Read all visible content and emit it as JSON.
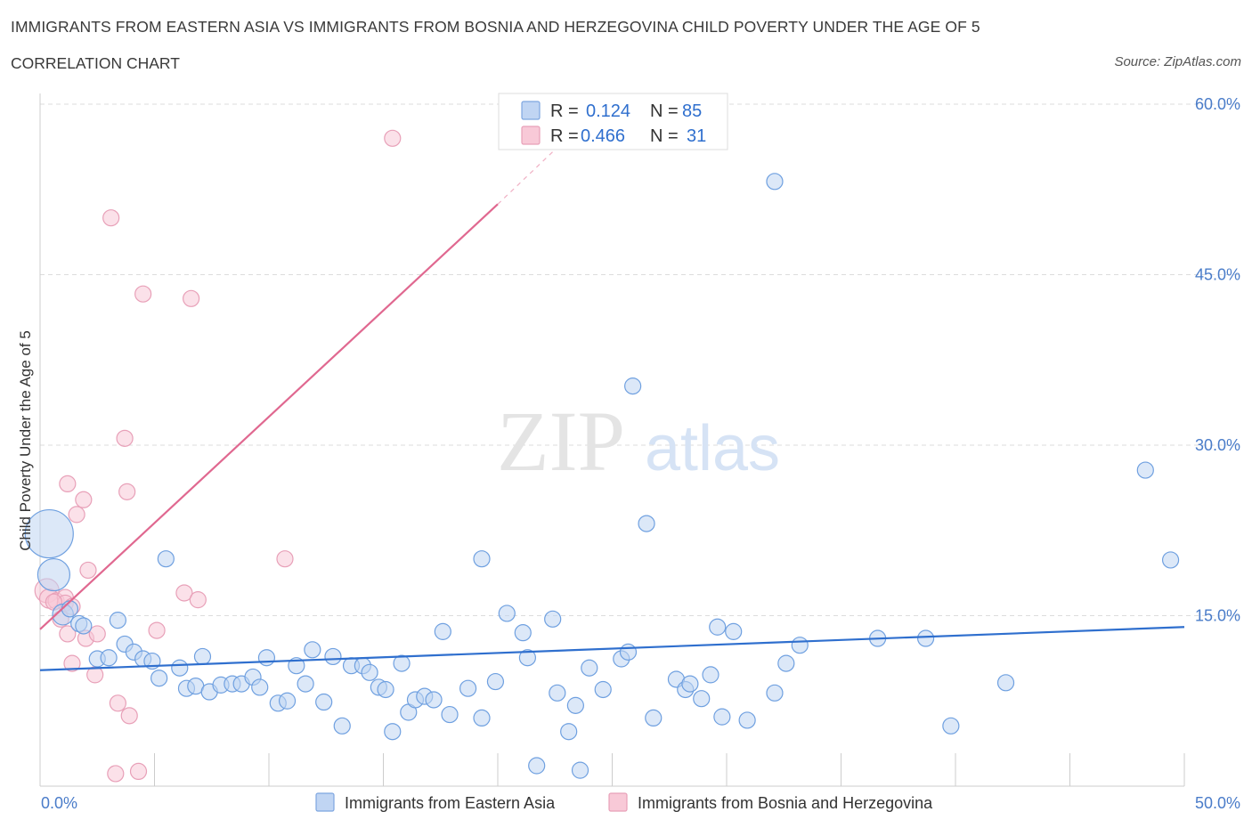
{
  "header": {
    "title": "IMMIGRANTS FROM EASTERN ASIA VS IMMIGRANTS FROM BOSNIA AND HERZEGOVINA CHILD POVERTY UNDER THE AGE OF 5",
    "subtitle": "CORRELATION CHART",
    "source": "Source: ZipAtlas.com"
  },
  "watermark": {
    "zip": "ZIP",
    "atlas": "atlas"
  },
  "legend": {
    "rows": [
      {
        "r_label": "R =",
        "r_value": "0.124",
        "n_label": "N =",
        "n_value": "85"
      },
      {
        "r_label": "R =",
        "r_value": "0.466",
        "n_label": "N =",
        "n_value": "31"
      }
    ]
  },
  "colors": {
    "series_blue": "#6fa0e0",
    "series_pink": "#f0a0b8",
    "trend_blue": "#2f6fce",
    "trend_pink": "#e06890",
    "tick_text": "#4a7cc9"
  },
  "chart_data": {
    "type": "scatter",
    "title": "IMMIGRANTS FROM EASTERN ASIA VS IMMIGRANTS FROM BOSNIA AND HERZEGOVINA CHILD POVERTY UNDER THE AGE OF 5",
    "subtitle": "CORRELATION CHART",
    "xlabel": "",
    "ylabel": "Child Poverty Under the Age of 5",
    "xlim": [
      0,
      50
    ],
    "ylim": [
      0,
      60
    ],
    "x_tick_labels": [
      "0.0%",
      "50.0%"
    ],
    "y_ticks": [
      15,
      30,
      45,
      60
    ],
    "y_tick_labels": [
      "15.0%",
      "30.0%",
      "45.0%",
      "60.0%"
    ],
    "grid": true,
    "legend_position": "top-center",
    "series": [
      {
        "name": "Immigrants from Eastern Asia",
        "R": 0.124,
        "N": 85,
        "trend": {
          "x": [
            0,
            50
          ],
          "y": [
            10.2,
            14.0
          ]
        },
        "points": [
          {
            "x": 0.4,
            "y": 22.2,
            "s": 3
          },
          {
            "x": 0.6,
            "y": 18.6,
            "s": 2
          },
          {
            "x": 1.0,
            "y": 15.1,
            "s": 1.3
          },
          {
            "x": 1.3,
            "y": 15.6,
            "s": 1
          },
          {
            "x": 1.7,
            "y": 14.3,
            "s": 1
          },
          {
            "x": 1.9,
            "y": 14.1,
            "s": 1
          },
          {
            "x": 2.5,
            "y": 11.2,
            "s": 1
          },
          {
            "x": 3.0,
            "y": 11.3,
            "s": 1
          },
          {
            "x": 3.4,
            "y": 14.6,
            "s": 1
          },
          {
            "x": 3.7,
            "y": 12.5,
            "s": 1
          },
          {
            "x": 4.1,
            "y": 11.8,
            "s": 1
          },
          {
            "x": 4.5,
            "y": 11.2,
            "s": 1
          },
          {
            "x": 4.9,
            "y": 11.0,
            "s": 1
          },
          {
            "x": 5.2,
            "y": 9.5,
            "s": 1
          },
          {
            "x": 5.5,
            "y": 20.0,
            "s": 1
          },
          {
            "x": 6.1,
            "y": 10.4,
            "s": 1
          },
          {
            "x": 6.4,
            "y": 8.6,
            "s": 1
          },
          {
            "x": 6.8,
            "y": 8.8,
            "s": 1
          },
          {
            "x": 7.1,
            "y": 11.4,
            "s": 1
          },
          {
            "x": 7.4,
            "y": 8.3,
            "s": 1
          },
          {
            "x": 7.9,
            "y": 8.9,
            "s": 1
          },
          {
            "x": 8.4,
            "y": 9.0,
            "s": 1
          },
          {
            "x": 8.8,
            "y": 9.0,
            "s": 1
          },
          {
            "x": 9.3,
            "y": 9.6,
            "s": 1
          },
          {
            "x": 9.6,
            "y": 8.7,
            "s": 1
          },
          {
            "x": 9.9,
            "y": 11.3,
            "s": 1
          },
          {
            "x": 10.4,
            "y": 7.3,
            "s": 1
          },
          {
            "x": 10.8,
            "y": 7.5,
            "s": 1
          },
          {
            "x": 11.2,
            "y": 10.6,
            "s": 1
          },
          {
            "x": 11.6,
            "y": 9.0,
            "s": 1
          },
          {
            "x": 11.9,
            "y": 12.0,
            "s": 1
          },
          {
            "x": 12.4,
            "y": 7.4,
            "s": 1
          },
          {
            "x": 12.8,
            "y": 11.4,
            "s": 1
          },
          {
            "x": 13.2,
            "y": 5.3,
            "s": 1
          },
          {
            "x": 13.6,
            "y": 10.6,
            "s": 1
          },
          {
            "x": 14.1,
            "y": 10.6,
            "s": 1
          },
          {
            "x": 14.4,
            "y": 10.0,
            "s": 1
          },
          {
            "x": 14.8,
            "y": 8.7,
            "s": 1
          },
          {
            "x": 15.1,
            "y": 8.5,
            "s": 1
          },
          {
            "x": 15.4,
            "y": 4.8,
            "s": 1
          },
          {
            "x": 15.8,
            "y": 10.8,
            "s": 1
          },
          {
            "x": 16.1,
            "y": 6.5,
            "s": 1
          },
          {
            "x": 16.4,
            "y": 7.6,
            "s": 1
          },
          {
            "x": 16.8,
            "y": 7.9,
            "s": 1
          },
          {
            "x": 17.2,
            "y": 7.6,
            "s": 1
          },
          {
            "x": 17.6,
            "y": 13.6,
            "s": 1
          },
          {
            "x": 17.9,
            "y": 6.3,
            "s": 1
          },
          {
            "x": 18.7,
            "y": 8.6,
            "s": 1
          },
          {
            "x": 19.3,
            "y": 6.0,
            "s": 1
          },
          {
            "x": 19.3,
            "y": 20.0,
            "s": 1
          },
          {
            "x": 19.9,
            "y": 9.2,
            "s": 1
          },
          {
            "x": 20.4,
            "y": 15.2,
            "s": 1
          },
          {
            "x": 21.1,
            "y": 13.5,
            "s": 1
          },
          {
            "x": 21.3,
            "y": 11.3,
            "s": 1
          },
          {
            "x": 21.7,
            "y": 1.8,
            "s": 1
          },
          {
            "x": 22.4,
            "y": 14.7,
            "s": 1
          },
          {
            "x": 22.6,
            "y": 8.2,
            "s": 1
          },
          {
            "x": 23.1,
            "y": 4.8,
            "s": 1
          },
          {
            "x": 23.4,
            "y": 7.1,
            "s": 1
          },
          {
            "x": 23.6,
            "y": 1.4,
            "s": 1
          },
          {
            "x": 24.0,
            "y": 10.4,
            "s": 1
          },
          {
            "x": 24.6,
            "y": 8.5,
            "s": 1
          },
          {
            "x": 25.4,
            "y": 11.2,
            "s": 1
          },
          {
            "x": 25.7,
            "y": 11.8,
            "s": 1
          },
          {
            "x": 25.9,
            "y": 35.2,
            "s": 1
          },
          {
            "x": 26.5,
            "y": 23.1,
            "s": 1
          },
          {
            "x": 26.8,
            "y": 6.0,
            "s": 1
          },
          {
            "x": 27.8,
            "y": 9.4,
            "s": 1
          },
          {
            "x": 28.2,
            "y": 8.5,
            "s": 1
          },
          {
            "x": 28.4,
            "y": 9.0,
            "s": 1
          },
          {
            "x": 28.9,
            "y": 7.7,
            "s": 1
          },
          {
            "x": 29.3,
            "y": 9.8,
            "s": 1
          },
          {
            "x": 29.6,
            "y": 14.0,
            "s": 1
          },
          {
            "x": 29.8,
            "y": 6.1,
            "s": 1
          },
          {
            "x": 30.3,
            "y": 13.6,
            "s": 1
          },
          {
            "x": 30.9,
            "y": 5.8,
            "s": 1
          },
          {
            "x": 32.1,
            "y": 8.2,
            "s": 1
          },
          {
            "x": 32.1,
            "y": 53.2,
            "s": 1
          },
          {
            "x": 32.6,
            "y": 10.8,
            "s": 1
          },
          {
            "x": 33.2,
            "y": 12.4,
            "s": 1
          },
          {
            "x": 36.6,
            "y": 13.0,
            "s": 1
          },
          {
            "x": 38.7,
            "y": 13.0,
            "s": 1
          },
          {
            "x": 39.8,
            "y": 5.3,
            "s": 1
          },
          {
            "x": 42.2,
            "y": 9.1,
            "s": 1
          },
          {
            "x": 48.3,
            "y": 27.8,
            "s": 1
          },
          {
            "x": 49.4,
            "y": 19.9,
            "s": 1
          }
        ]
      },
      {
        "name": "Immigrants from Bosnia and Herzegovina",
        "R": 0.466,
        "N": 31,
        "trend": {
          "x": [
            0,
            20
          ],
          "y": [
            13.8,
            51.2
          ]
        },
        "trend_dashed": {
          "x": [
            20,
            22.5
          ],
          "y": [
            51.2,
            56.0
          ]
        },
        "points": [
          {
            "x": 0.3,
            "y": 17.2,
            "s": 1.5
          },
          {
            "x": 0.4,
            "y": 16.5,
            "s": 1.2
          },
          {
            "x": 0.7,
            "y": 16.3,
            "s": 1
          },
          {
            "x": 0.9,
            "y": 14.7,
            "s": 1
          },
          {
            "x": 1.1,
            "y": 16.6,
            "s": 1
          },
          {
            "x": 1.1,
            "y": 16.1,
            "s": 1
          },
          {
            "x": 1.2,
            "y": 13.4,
            "s": 1
          },
          {
            "x": 1.2,
            "y": 26.6,
            "s": 1
          },
          {
            "x": 1.4,
            "y": 15.8,
            "s": 1
          },
          {
            "x": 1.4,
            "y": 10.8,
            "s": 1
          },
          {
            "x": 1.6,
            "y": 23.9,
            "s": 1
          },
          {
            "x": 1.9,
            "y": 25.2,
            "s": 1
          },
          {
            "x": 2.0,
            "y": 13.0,
            "s": 1
          },
          {
            "x": 2.1,
            "y": 19.0,
            "s": 1
          },
          {
            "x": 2.4,
            "y": 9.8,
            "s": 1
          },
          {
            "x": 2.5,
            "y": 13.4,
            "s": 1
          },
          {
            "x": 3.1,
            "y": 50.0,
            "s": 1
          },
          {
            "x": 3.3,
            "y": 1.1,
            "s": 1
          },
          {
            "x": 3.4,
            "y": 7.3,
            "s": 1
          },
          {
            "x": 3.7,
            "y": 30.6,
            "s": 1
          },
          {
            "x": 3.8,
            "y": 25.9,
            "s": 1
          },
          {
            "x": 3.9,
            "y": 6.2,
            "s": 1
          },
          {
            "x": 4.3,
            "y": 1.3,
            "s": 1
          },
          {
            "x": 4.5,
            "y": 43.3,
            "s": 1
          },
          {
            "x": 5.1,
            "y": 13.7,
            "s": 1
          },
          {
            "x": 6.3,
            "y": 17.0,
            "s": 1
          },
          {
            "x": 6.6,
            "y": 42.9,
            "s": 1
          },
          {
            "x": 6.9,
            "y": 16.4,
            "s": 1
          },
          {
            "x": 10.7,
            "y": 20.0,
            "s": 1
          },
          {
            "x": 15.4,
            "y": 57.0,
            "s": 1
          },
          {
            "x": 0.6,
            "y": 16.2,
            "s": 1
          }
        ]
      }
    ]
  },
  "bottom_legend": {
    "items": [
      {
        "label": "Immigrants from Eastern Asia"
      },
      {
        "label": "Immigrants from Bosnia and Herzegovina"
      }
    ]
  }
}
